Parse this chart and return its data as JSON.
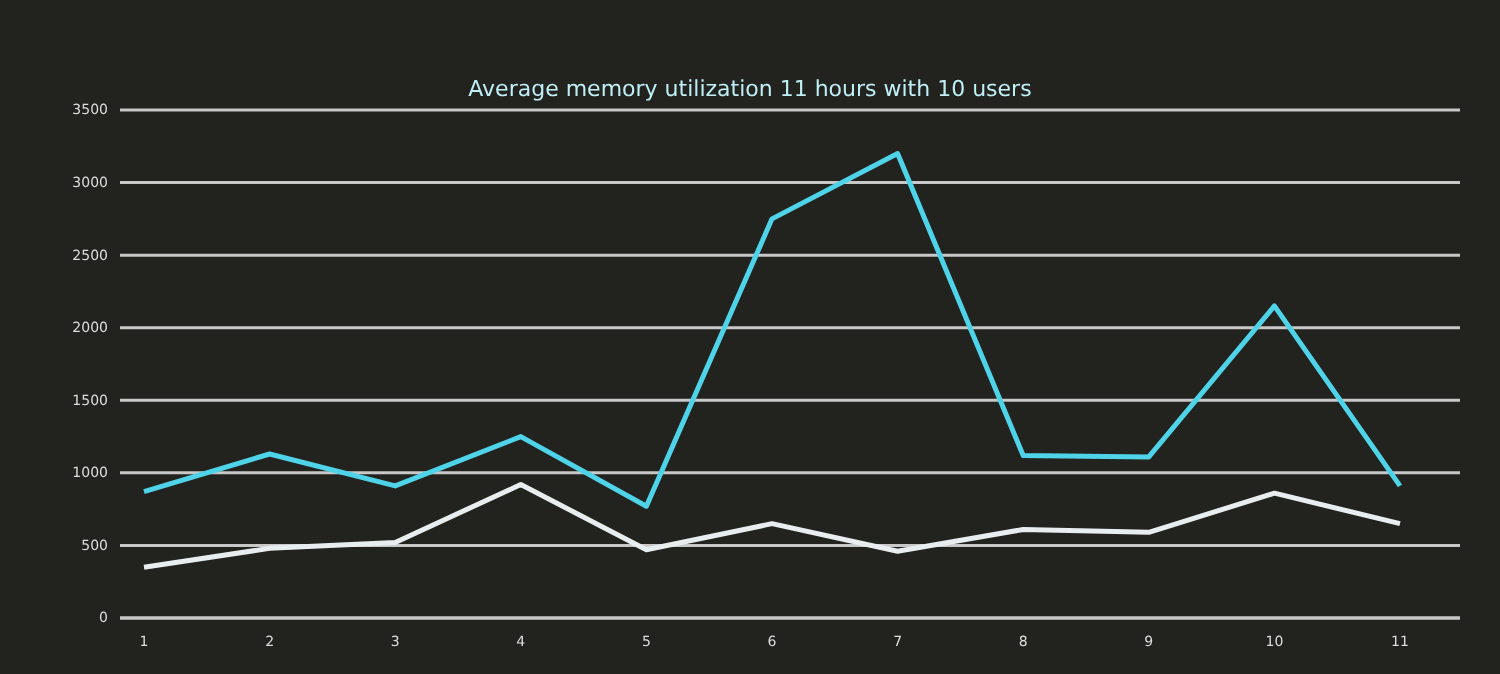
{
  "chart_data": {
    "type": "line",
    "title": "Average memory utilization 11 hours with 10 users",
    "categories": [
      "1",
      "2",
      "3",
      "4",
      "5",
      "6",
      "7",
      "8",
      "9",
      "10",
      "11"
    ],
    "series": [
      {
        "color": "#4fd3e8",
        "values": [
          870,
          1130,
          910,
          1250,
          770,
          2750,
          3200,
          1120,
          1110,
          2150,
          910
        ]
      },
      {
        "color": "#e8eef0",
        "values": [
          350,
          480,
          520,
          920,
          470,
          650,
          460,
          610,
          590,
          860,
          650
        ]
      }
    ],
    "ylim": [
      0,
      3500
    ],
    "yticks": [
      0,
      500,
      1000,
      1500,
      2000,
      2500,
      3000,
      3500
    ],
    "grid": "y",
    "marker": "none",
    "line_style": "solid"
  }
}
